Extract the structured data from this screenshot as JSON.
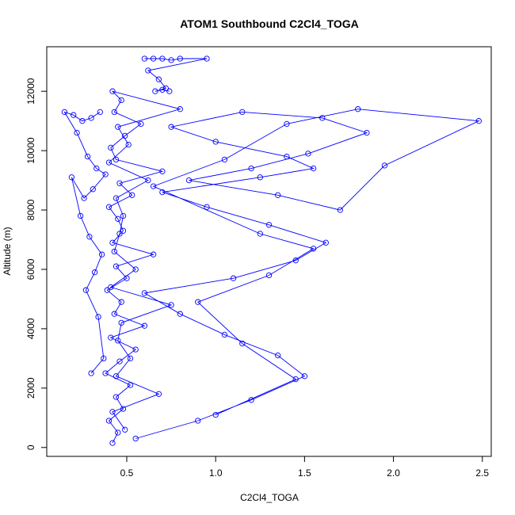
{
  "chart_data": {
    "type": "scatter",
    "title": "ATOM1 Southbound C2Cl4_TOGA",
    "xlabel": "C2Cl4_TOGA",
    "ylabel": "Altitude (m)",
    "xlim": [
      0.05,
      2.55
    ],
    "ylim": [
      -300,
      13500
    ],
    "xticks": [
      0.5,
      1.0,
      1.5,
      2.0,
      2.5
    ],
    "xtick_labels": [
      "0.5",
      "1.0",
      "1.5",
      "2.0",
      "2.5"
    ],
    "yticks": [
      0,
      2000,
      4000,
      6000,
      8000,
      10000,
      12000
    ],
    "ytick_labels": [
      "0",
      "2000",
      "4000",
      "6000",
      "8000",
      "10000",
      "12000"
    ],
    "grid": false,
    "series_color": "#0000ff",
    "marker": "open-circle",
    "connected": true,
    "series": [
      {
        "x": [
          0.42,
          0.45,
          0.4,
          0.48,
          0.44,
          0.52,
          0.38,
          0.46,
          0.55,
          0.41,
          0.6,
          0.43,
          0.47,
          0.39,
          0.5,
          0.44,
          0.65,
          0.42,
          0.48,
          0.45,
          0.4,
          0.53,
          0.46,
          0.7,
          0.44,
          0.41,
          0.49,
          0.58,
          0.43,
          0.47,
          0.42,
          0.8,
          0.45,
          0.51,
          0.4,
          0.62,
          0.44,
          0.48,
          0.46,
          0.43,
          0.55,
          0.41,
          0.75,
          0.47,
          0.45,
          0.52,
          0.44,
          0.68,
          0.42,
          0.49
        ],
        "y": [
          150,
          500,
          900,
          1300,
          1700,
          2100,
          2500,
          2900,
          3300,
          3700,
          4100,
          4500,
          4900,
          5300,
          5700,
          6100,
          6500,
          6900,
          7300,
          7700,
          8100,
          8500,
          8900,
          9300,
          9700,
          10100,
          10500,
          10900,
          11300,
          11700,
          12000,
          11400,
          10800,
          10200,
          9600,
          9000,
          8400,
          7800,
          7200,
          6600,
          6000,
          5400,
          4800,
          4200,
          3600,
          3000,
          2400,
          1800,
          1200,
          600
        ]
      },
      {
        "x": [
          0.55,
          0.9,
          1.2,
          1.5,
          1.35,
          1.05,
          0.8,
          0.6,
          1.1,
          1.45,
          1.62,
          1.3,
          0.95,
          0.7,
          1.25,
          1.55,
          1.4,
          1.0,
          0.75,
          1.15,
          1.6,
          1.85,
          1.52,
          1.2,
          0.85,
          1.35,
          1.7,
          1.95,
          2.48,
          1.8,
          1.4,
          1.05,
          0.65,
          1.25,
          1.55,
          1.3,
          0.9,
          1.15,
          1.45,
          1.0
        ],
        "y": [
          300,
          900,
          1600,
          2400,
          3100,
          3800,
          4500,
          5200,
          5700,
          6300,
          6900,
          7500,
          8100,
          8600,
          9100,
          9400,
          9800,
          10300,
          10800,
          11300,
          11100,
          10600,
          9900,
          9400,
          9000,
          8500,
          8000,
          9500,
          11000,
          11400,
          10900,
          9700,
          8800,
          7200,
          6700,
          5800,
          4900,
          3500,
          2300,
          1100
        ]
      },
      {
        "x": [
          0.35,
          0.3,
          0.25,
          0.2,
          0.15,
          0.22,
          0.28,
          0.33,
          0.38,
          0.31,
          0.26,
          0.19,
          0.24,
          0.29,
          0.36,
          0.32,
          0.27,
          0.34,
          0.37,
          0.3
        ],
        "y": [
          11300,
          11100,
          11000,
          11200,
          11300,
          10600,
          9800,
          9400,
          9200,
          8700,
          8400,
          9100,
          7800,
          7100,
          6500,
          5900,
          5300,
          4400,
          3000,
          2500
        ]
      },
      {
        "x": [
          0.6,
          0.65,
          0.7,
          0.75,
          0.8,
          0.95,
          0.62,
          0.68,
          0.72,
          0.66,
          0.7,
          0.74
        ],
        "y": [
          13100,
          13100,
          13100,
          13050,
          13100,
          13100,
          12700,
          12400,
          12100,
          12000,
          12050,
          12000
        ]
      }
    ]
  }
}
